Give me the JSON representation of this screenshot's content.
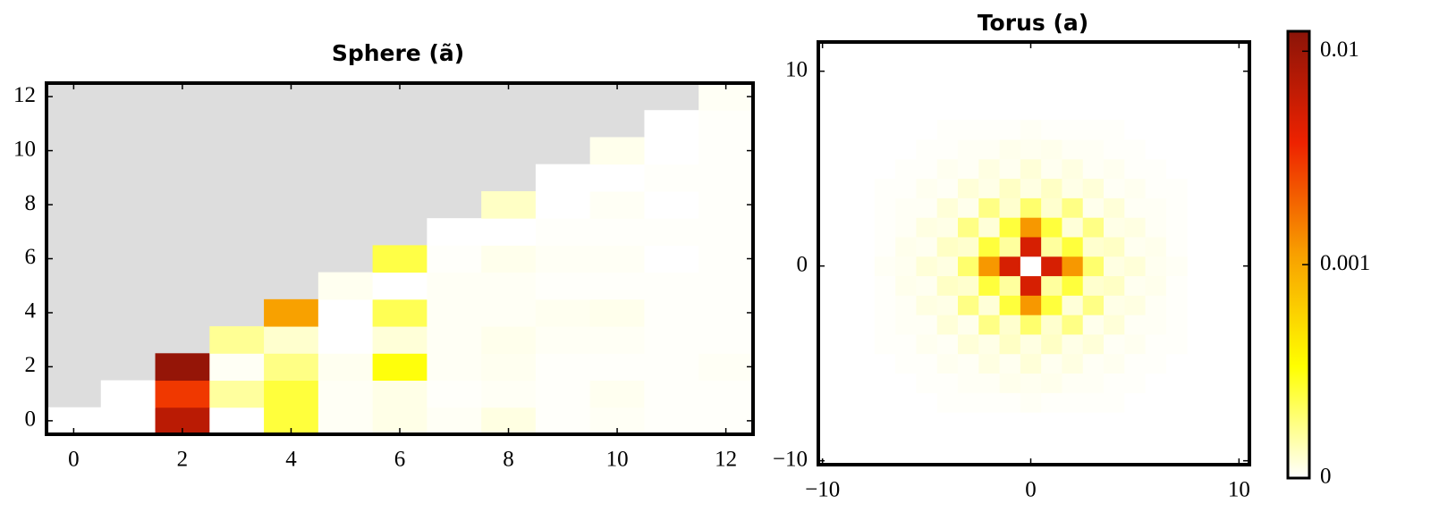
{
  "chart_data": [
    {
      "type": "heatmap",
      "title": "Sphere (ã)",
      "x": [
        0,
        1,
        2,
        3,
        4,
        5,
        6,
        7,
        8,
        9,
        10,
        11,
        12
      ],
      "y": [
        0,
        1,
        2,
        3,
        4,
        5,
        6,
        7,
        8,
        9,
        10,
        11,
        12
      ],
      "z": [
        [
          0,
          0,
          0.007,
          0,
          0.0004,
          2e-05,
          5e-05,
          2e-05,
          6e-05,
          1e-05,
          2e-05,
          1e-05,
          1e-05
        ],
        [
          null,
          0,
          0.003,
          0.0002,
          0.0004,
          2e-05,
          5e-05,
          1e-05,
          2e-05,
          1e-05,
          3e-05,
          1e-05,
          1e-05
        ],
        [
          null,
          null,
          0.011,
          2e-05,
          0.00025,
          3e-05,
          0.0005,
          2e-05,
          3e-05,
          1e-05,
          1e-05,
          1e-05,
          2e-05
        ],
        [
          null,
          null,
          null,
          0.00022,
          0.0001,
          0,
          8e-05,
          2e-05,
          4e-05,
          2e-05,
          2e-05,
          1e-05,
          1e-05
        ],
        [
          null,
          null,
          null,
          null,
          0.0011,
          0,
          0.00035,
          2e-05,
          2e-05,
          3e-05,
          4e-05,
          1e-05,
          1e-05
        ],
        [
          null,
          null,
          null,
          null,
          null,
          3e-05,
          0,
          2e-05,
          2e-05,
          1e-05,
          1e-05,
          1e-05,
          1e-05
        ],
        [
          null,
          null,
          null,
          null,
          null,
          null,
          0.00038,
          1e-05,
          4e-05,
          2e-05,
          2e-05,
          0,
          1e-05
        ],
        [
          null,
          null,
          null,
          null,
          null,
          null,
          null,
          0,
          0,
          1e-05,
          1e-05,
          1e-05,
          1e-05
        ],
        [
          null,
          null,
          null,
          null,
          null,
          null,
          null,
          null,
          0.00012,
          0,
          2e-05,
          0,
          1e-05
        ],
        [
          null,
          null,
          null,
          null,
          null,
          null,
          null,
          null,
          null,
          0,
          0,
          1e-05,
          1e-05
        ],
        [
          null,
          null,
          null,
          null,
          null,
          null,
          null,
          null,
          null,
          null,
          4e-05,
          0,
          1e-05
        ],
        [
          null,
          null,
          null,
          null,
          null,
          null,
          null,
          null,
          null,
          null,
          null,
          0,
          1e-05
        ],
        [
          null,
          null,
          null,
          null,
          null,
          null,
          null,
          null,
          null,
          null,
          null,
          null,
          2e-05
        ]
      ],
      "xlim": [
        -0.5,
        12.5
      ],
      "ylim": [
        -0.5,
        12.5
      ],
      "xticks": [
        0,
        2,
        4,
        6,
        8,
        10,
        12
      ],
      "yticks": [
        0,
        2,
        4,
        6,
        8,
        10,
        12
      ],
      "missing_color": "#dddddd"
    },
    {
      "type": "heatmap",
      "title": "Torus (a)",
      "x": [
        -7,
        -6,
        -5,
        -4,
        -3,
        -2,
        -1,
        0,
        1,
        2,
        3,
        4,
        5,
        6,
        7
      ],
      "y": [
        -7,
        -6,
        -5,
        -4,
        -3,
        -2,
        -1,
        0,
        1,
        2,
        3,
        4,
        5,
        6,
        7
      ],
      "z": [
        [
          0,
          0,
          0,
          1e-05,
          1e-05,
          1e-05,
          1e-05,
          2e-05,
          1e-05,
          1e-05,
          1e-05,
          1e-05,
          0,
          0,
          0
        ],
        [
          0,
          0,
          1e-05,
          1e-05,
          2e-05,
          2e-05,
          4e-05,
          3e-05,
          4e-05,
          2e-05,
          2e-05,
          1e-05,
          1e-05,
          0,
          0
        ],
        [
          0,
          1e-05,
          1e-05,
          3e-05,
          2e-05,
          6e-05,
          3e-05,
          8e-05,
          3e-05,
          6e-05,
          2e-05,
          3e-05,
          1e-05,
          1e-05,
          0
        ],
        [
          1e-05,
          1e-05,
          3e-05,
          2e-05,
          8e-05,
          5e-05,
          0.00012,
          6e-05,
          0.00012,
          5e-05,
          8e-05,
          2e-05,
          3e-05,
          1e-05,
          1e-05
        ],
        [
          1e-05,
          2e-05,
          2e-05,
          8e-05,
          4e-05,
          0.00025,
          0.0001,
          0.0003,
          0.0001,
          0.00025,
          4e-05,
          8e-05,
          2e-05,
          2e-05,
          1e-05
        ],
        [
          1e-05,
          2e-05,
          6e-05,
          5e-05,
          0.00025,
          8e-05,
          0.0004,
          0.0012,
          0.0004,
          8e-05,
          0.00025,
          5e-05,
          6e-05,
          2e-05,
          1e-05
        ],
        [
          1e-05,
          4e-05,
          3e-05,
          0.00012,
          0.0001,
          0.0004,
          0.0002,
          0.005,
          0.0002,
          0.0004,
          0.0001,
          0.00012,
          3e-05,
          4e-05,
          1e-05
        ],
        [
          2e-05,
          3e-05,
          8e-05,
          6e-05,
          0.0003,
          0.0012,
          0.005,
          0,
          0.005,
          0.0012,
          0.0003,
          6e-05,
          8e-05,
          3e-05,
          2e-05
        ],
        [
          1e-05,
          4e-05,
          3e-05,
          0.00012,
          0.0001,
          0.0004,
          0.0002,
          0.005,
          0.0002,
          0.0004,
          0.0001,
          0.00012,
          3e-05,
          4e-05,
          1e-05
        ],
        [
          1e-05,
          2e-05,
          6e-05,
          5e-05,
          0.00025,
          8e-05,
          0.0004,
          0.0012,
          0.0004,
          8e-05,
          0.00025,
          5e-05,
          6e-05,
          2e-05,
          1e-05
        ],
        [
          1e-05,
          2e-05,
          2e-05,
          8e-05,
          4e-05,
          0.00025,
          0.0001,
          0.0003,
          0.0001,
          0.00025,
          4e-05,
          8e-05,
          2e-05,
          2e-05,
          1e-05
        ],
        [
          1e-05,
          1e-05,
          3e-05,
          2e-05,
          8e-05,
          5e-05,
          0.00012,
          6e-05,
          0.00012,
          5e-05,
          8e-05,
          2e-05,
          3e-05,
          1e-05,
          1e-05
        ],
        [
          0,
          1e-05,
          1e-05,
          3e-05,
          2e-05,
          6e-05,
          3e-05,
          8e-05,
          3e-05,
          6e-05,
          2e-05,
          3e-05,
          1e-05,
          1e-05,
          0
        ],
        [
          0,
          0,
          1e-05,
          1e-05,
          2e-05,
          2e-05,
          4e-05,
          3e-05,
          4e-05,
          2e-05,
          2e-05,
          1e-05,
          1e-05,
          0,
          0
        ],
        [
          0,
          0,
          0,
          1e-05,
          1e-05,
          1e-05,
          1e-05,
          2e-05,
          1e-05,
          1e-05,
          1e-05,
          1e-05,
          0,
          0,
          0
        ]
      ],
      "xlim": [
        -10.2,
        10.5
      ],
      "ylim": [
        -10.2,
        11.5
      ],
      "xticks": [
        {
          "value": -10,
          "label": "−10"
        },
        0,
        10
      ],
      "yticks": [
        {
          "value": -10,
          "label": "−10"
        },
        0,
        10
      ]
    },
    {
      "type": "colorbar",
      "scale": "symlog",
      "linthresh": 0.001,
      "clim": [
        0,
        0.0124
      ],
      "ticks": [
        0,
        0.001,
        0.01
      ],
      "colormap": [
        "#ffffff",
        "#ffff00",
        "#f8a000",
        "#ee2200",
        "#8b1408"
      ]
    }
  ]
}
